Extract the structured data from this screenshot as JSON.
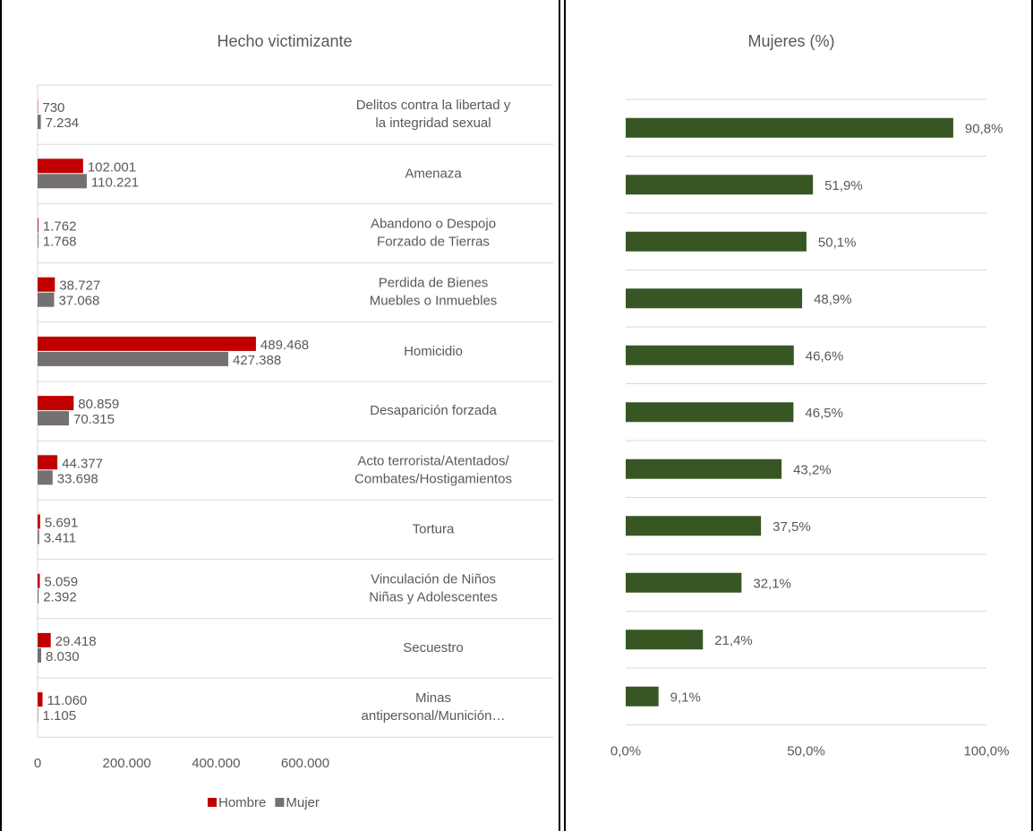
{
  "chart_data": [
    {
      "type": "bar",
      "orientation": "horizontal",
      "title": "Hecho victimizante",
      "categories": [
        "Delitos contra la libertad y\nla integridad sexual",
        "Amenaza",
        "Abandono o Despojo\nForzado de Tierras",
        "Perdida de Bienes\nMuebles o Inmuebles",
        "Homicidio",
        "Desaparición forzada",
        "Acto terrorista/Atentados/\nCombates/Hostigamientos",
        "Tortura",
        "Vinculación de Niños\nNiñas y Adolescentes",
        "Secuestro",
        "Minas\nantipersonal/Munición…"
      ],
      "series": [
        {
          "name": "Hombre",
          "color": "#c00000",
          "values": [
            730,
            102001,
            1762,
            38727,
            489468,
            80859,
            44377,
            5691,
            5059,
            29418,
            11060
          ],
          "value_labels": [
            "730",
            "102.001",
            "1.762",
            "38.727",
            "489.468",
            "80.859",
            "44.377",
            "5.691",
            "5.059",
            "29.418",
            "11.060"
          ]
        },
        {
          "name": "Mujer",
          "color": "#767171",
          "values": [
            7234,
            110221,
            1768,
            37068,
            427388,
            70315,
            33698,
            3411,
            2392,
            8030,
            1105
          ],
          "value_labels": [
            "7.234",
            "110.221",
            "1.768",
            "37.068",
            "427.388",
            "70.315",
            "33.698",
            "3.411",
            "2.392",
            "8.030",
            "1.105"
          ]
        }
      ],
      "xlim": [
        0,
        600000
      ],
      "xticks": [
        0,
        {
          "value": 200000,
          "label": "200.000"
        },
        {
          "value": 400000,
          "label": "400.000"
        },
        {
          "value": 600000,
          "label": "600.000"
        }
      ],
      "grid": true,
      "legend": "bottom"
    },
    {
      "type": "bar",
      "orientation": "horizontal",
      "title": "Mujeres (%)",
      "values": [
        90.8,
        51.9,
        50.1,
        48.9,
        46.6,
        46.5,
        43.2,
        37.5,
        32.1,
        21.4,
        9.1
      ],
      "value_labels": [
        "90,8%",
        "51,9%",
        "50,1%",
        "48,9%",
        "46,6%",
        "46,5%",
        "43,2%",
        "37,5%",
        "32,1%",
        "21,4%",
        "9,1%"
      ],
      "color": "#375623",
      "xlim": [
        0,
        100
      ],
      "xticks": [
        {
          "value": 0,
          "label": "0,0%"
        },
        {
          "value": 50,
          "label": "50,0%"
        },
        {
          "value": 100,
          "label": "100,0%"
        }
      ],
      "grid": true
    }
  ]
}
